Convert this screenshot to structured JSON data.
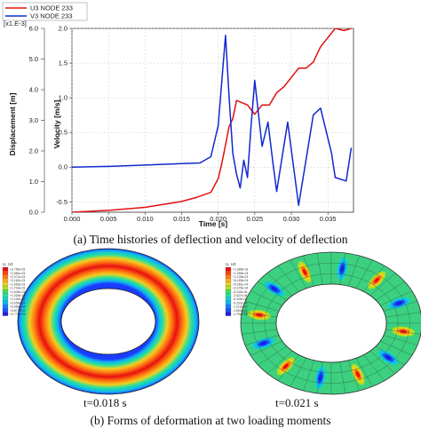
{
  "chart_data": {
    "type": "line",
    "legend": {
      "placement": "top-left",
      "entries": [
        "U3 NODE 233",
        "V3 NODE 233"
      ]
    },
    "xlabel": "Time [s]",
    "xlim": [
      0,
      0.0385
    ],
    "xticks": [
      "0.000",
      "0.005",
      "0.010",
      "0.015",
      "0.020",
      "0.025",
      "0.030",
      "0.035"
    ],
    "y_left": {
      "label": "Displacement [m]",
      "multiplier": "[x1.E-3]",
      "ylim": [
        0,
        6
      ],
      "ticks": [
        "0.0",
        "1.0",
        "2.0",
        "3.0",
        "4.0",
        "5.0",
        "6.0"
      ]
    },
    "y_right": {
      "label": "Velocity [m/s]",
      "ylim": [
        -0.65,
        2.0
      ],
      "ticks": [
        "-0.5",
        "0.0",
        "0.5",
        "1.0",
        "1.5",
        "2.0"
      ]
    },
    "series": [
      {
        "name": "U3 NODE 233",
        "axis": "left",
        "color": "#e01010",
        "x": [
          0,
          0.005,
          0.01,
          0.015,
          0.017,
          0.019,
          0.02,
          0.0205,
          0.021,
          0.0215,
          0.022,
          0.0225,
          0.023,
          0.024,
          0.025,
          0.026,
          0.027,
          0.028,
          0.029,
          0.03,
          0.031,
          0.032,
          0.033,
          0.034,
          0.035,
          0.036,
          0.0372,
          0.0382
        ],
        "values": [
          0.0,
          0.06,
          0.16,
          0.35,
          0.48,
          0.65,
          1.1,
          1.6,
          2.2,
          2.8,
          3.05,
          3.65,
          3.6,
          3.5,
          3.2,
          3.5,
          3.5,
          3.9,
          4.1,
          4.4,
          4.7,
          4.7,
          4.9,
          5.4,
          5.7,
          6.0,
          5.93,
          6.0
        ]
      },
      {
        "name": "V3 NODE 233",
        "axis": "right",
        "color": "#1028d0",
        "x": [
          0,
          0.005,
          0.01,
          0.015,
          0.0175,
          0.019,
          0.02,
          0.021,
          0.0215,
          0.022,
          0.0225,
          0.023,
          0.0235,
          0.024,
          0.0245,
          0.025,
          0.026,
          0.0268,
          0.0275,
          0.028,
          0.0295,
          0.03,
          0.031,
          0.032,
          0.033,
          0.034,
          0.0355,
          0.036,
          0.0375,
          0.0382
        ],
        "values": [
          0.0,
          0.01,
          0.03,
          0.05,
          0.06,
          0.15,
          0.6,
          1.9,
          1.0,
          0.2,
          -0.1,
          -0.3,
          0.1,
          -0.15,
          0.6,
          1.25,
          0.3,
          0.65,
          0.05,
          -0.35,
          0.65,
          0.25,
          -0.55,
          0.1,
          0.75,
          0.85,
          0.2,
          -0.15,
          -0.2,
          0.28
        ]
      }
    ]
  },
  "caption_a": "(a) Time histories of deflection and velocity of deflection",
  "panel_left": {
    "legend_title": "U, U3",
    "legend_values": [
      "+2.790e-03",
      "+2.581e-03",
      "+2.371e-03",
      "+2.162e-03",
      "+1.953e-03",
      "+1.743e-03",
      "+1.534e-03",
      "+1.325e-03",
      "+1.115e-03",
      "+9.059e-04",
      "+6.966e-04",
      "+4.873e-04",
      "+2.779e-04"
    ],
    "time_label": "t=0.018 s"
  },
  "panel_right": {
    "legend_title": "U, U3",
    "legend_values": [
      "+1.689e-03",
      "+1.399e-03",
      "+1.109e-03",
      "+8.183e-04",
      "+5.281e-04",
      "+2.378e-04",
      "-5.240e-05",
      "-3.427e-04",
      "-6.329e-04",
      "-9.232e-04",
      "-1.213e-03",
      "-1.504e-03",
      "-1.794e-03"
    ],
    "time_label": "t=0.021 s"
  },
  "caption_b": "(b) Forms of deformation at two loading moments"
}
